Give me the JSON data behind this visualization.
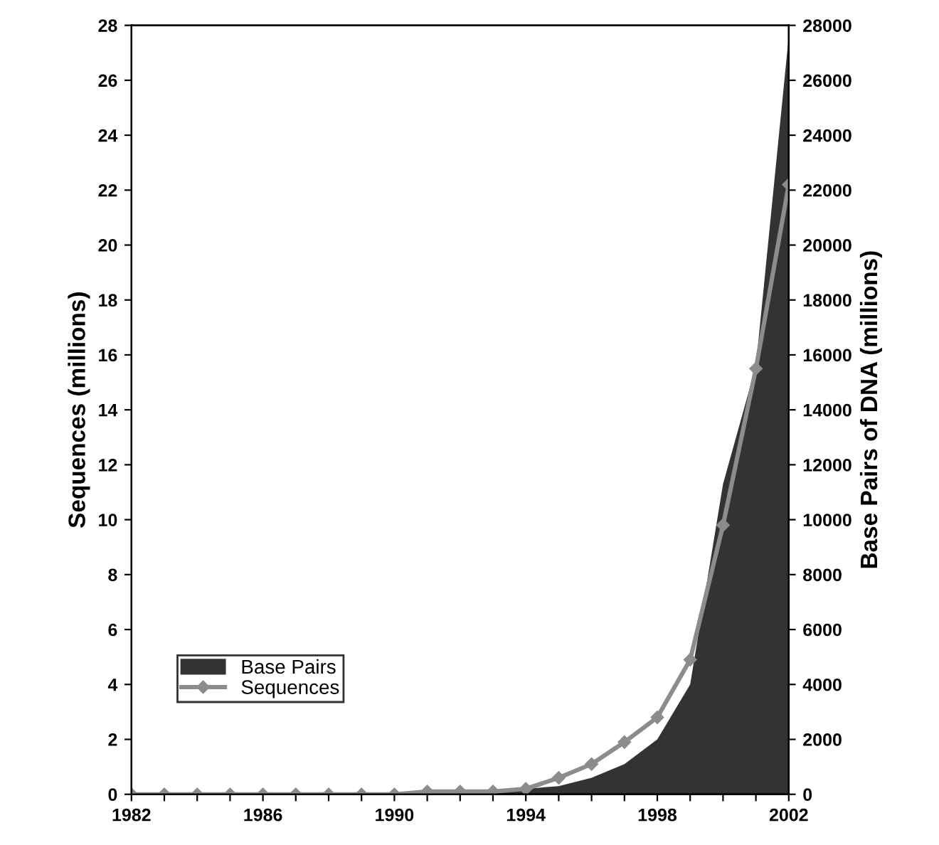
{
  "chart_data": {
    "type": "line",
    "ylabel": "Sequences (millions)",
    "y2label": "Base Pairs of DNA (millions)",
    "x": [
      1982,
      1983,
      1984,
      1985,
      1986,
      1987,
      1988,
      1989,
      1990,
      1991,
      1992,
      1993,
      1994,
      1995,
      1996,
      1997,
      1998,
      1999,
      2000,
      2001,
      2002
    ],
    "series": [
      {
        "name": "Base Pairs",
        "type": "area",
        "axis": "y2",
        "color": "#333333",
        "values": [
          0,
          0,
          0,
          0,
          0,
          0,
          0,
          0,
          0,
          0,
          100,
          100,
          200,
          300,
          600,
          1100,
          2000,
          4000,
          11300,
          15600,
          27600
        ]
      },
      {
        "name": "Sequences",
        "color": "#8c8c8c",
        "marker": "diamond",
        "values": [
          0,
          0,
          0,
          0,
          0,
          0,
          0,
          0,
          0,
          0.1,
          0.1,
          0.1,
          0.2,
          0.6,
          1.1,
          1.9,
          2.8,
          4.9,
          9.8,
          15.5,
          22.2
        ]
      }
    ],
    "xlim": [
      1982,
      2002
    ],
    "xticks": [
      1982,
      {
        "value": 1983,
        "label": null
      },
      {
        "value": 1984,
        "label": null
      },
      {
        "value": 1985,
        "label": null
      },
      1986,
      {
        "value": 1987,
        "label": null
      },
      {
        "value": 1988,
        "label": null
      },
      {
        "value": 1989,
        "label": null
      },
      1990,
      {
        "value": 1991,
        "label": null
      },
      {
        "value": 1992,
        "label": null
      },
      {
        "value": 1993,
        "label": null
      },
      1994,
      {
        "value": 1995,
        "label": null
      },
      {
        "value": 1996,
        "label": null
      },
      {
        "value": 1997,
        "label": null
      },
      1998,
      {
        "value": 1999,
        "label": null
      },
      {
        "value": 2000,
        "label": null
      },
      {
        "value": 2001,
        "label": null
      },
      2002
    ],
    "ylim": [
      0,
      28
    ],
    "yticks": [
      0,
      2,
      4,
      6,
      8,
      10,
      12,
      14,
      16,
      18,
      20,
      22,
      24,
      26,
      28
    ],
    "y2lim": [
      0,
      28000
    ],
    "y2ticks": [
      0,
      2000,
      4000,
      6000,
      8000,
      10000,
      12000,
      14000,
      16000,
      18000,
      20000,
      22000,
      24000,
      26000,
      28000
    ],
    "legend": "bottom left",
    "grid": false
  }
}
